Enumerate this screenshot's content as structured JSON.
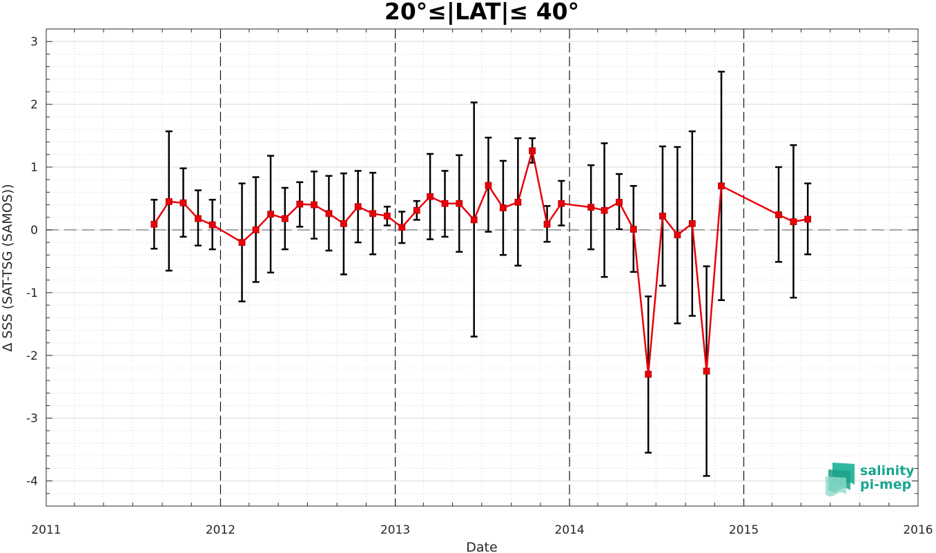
{
  "chart_data": {
    "type": "line",
    "title": "20°≤|LAT|≤ 40°",
    "xlabel": "Date",
    "ylabel": "Δ SSS (SAT-TSG (SAMOS))",
    "xlim": [
      "2011-01-01",
      "2016-01-01"
    ],
    "ylim": [
      -4.4,
      3.2
    ],
    "x_ticks": [
      "2011",
      "2012",
      "2013",
      "2014",
      "2015",
      "2016"
    ],
    "y_ticks": [
      "3",
      "2",
      "1",
      "0",
      "-1",
      "-2",
      "-3",
      "-4"
    ],
    "grid": true,
    "year_boundaries": [
      "2012",
      "2013",
      "2014",
      "2015"
    ],
    "zero_line": true,
    "series": [
      {
        "color": "#e8000b",
        "marker": "square",
        "errorbar_color": "#000000",
        "points": [
          {
            "date": "2011-08-15",
            "value": 0.09,
            "low": -0.3,
            "high": 0.48
          },
          {
            "date": "2011-09-15",
            "value": 0.45,
            "low": -0.65,
            "high": 1.57
          },
          {
            "date": "2011-10-15",
            "value": 0.43,
            "low": -0.11,
            "high": 0.98
          },
          {
            "date": "2011-11-15",
            "value": 0.18,
            "low": -0.25,
            "high": 0.63
          },
          {
            "date": "2011-12-15",
            "value": 0.08,
            "low": -0.31,
            "high": 0.48
          },
          {
            "date": "2012-02-15",
            "value": -0.2,
            "low": -1.14,
            "high": 0.74
          },
          {
            "date": "2012-03-15",
            "value": 0.0,
            "low": -0.83,
            "high": 0.84
          },
          {
            "date": "2012-04-15",
            "value": 0.25,
            "low": -0.68,
            "high": 1.18
          },
          {
            "date": "2012-05-15",
            "value": 0.18,
            "low": -0.31,
            "high": 0.67
          },
          {
            "date": "2012-06-15",
            "value": 0.41,
            "low": 0.05,
            "high": 0.76
          },
          {
            "date": "2012-07-15",
            "value": 0.4,
            "low": -0.14,
            "high": 0.93
          },
          {
            "date": "2012-08-15",
            "value": 0.26,
            "low": -0.33,
            "high": 0.86
          },
          {
            "date": "2012-09-15",
            "value": 0.1,
            "low": -0.71,
            "high": 0.9
          },
          {
            "date": "2012-10-15",
            "value": 0.37,
            "low": -0.2,
            "high": 0.94
          },
          {
            "date": "2012-11-15",
            "value": 0.26,
            "low": -0.39,
            "high": 0.91
          },
          {
            "date": "2012-12-15",
            "value": 0.22,
            "low": 0.07,
            "high": 0.37
          },
          {
            "date": "2013-01-15",
            "value": 0.04,
            "low": -0.21,
            "high": 0.29
          },
          {
            "date": "2013-02-15",
            "value": 0.31,
            "low": 0.16,
            "high": 0.46
          },
          {
            "date": "2013-03-15",
            "value": 0.53,
            "low": -0.15,
            "high": 1.21
          },
          {
            "date": "2013-04-15",
            "value": 0.42,
            "low": -0.11,
            "high": 0.94
          },
          {
            "date": "2013-05-15",
            "value": 0.42,
            "low": -0.35,
            "high": 1.19
          },
          {
            "date": "2013-06-15",
            "value": 0.16,
            "low": -1.7,
            "high": 2.03
          },
          {
            "date": "2013-07-15",
            "value": 0.71,
            "low": -0.03,
            "high": 1.47
          },
          {
            "date": "2013-08-15",
            "value": 0.35,
            "low": -0.4,
            "high": 1.1
          },
          {
            "date": "2013-09-15",
            "value": 0.44,
            "low": -0.57,
            "high": 1.46
          },
          {
            "date": "2013-10-15",
            "value": 1.26,
            "low": 1.07,
            "high": 1.46
          },
          {
            "date": "2013-11-15",
            "value": 0.09,
            "low": -0.19,
            "high": 0.38
          },
          {
            "date": "2013-12-15",
            "value": 0.42,
            "low": 0.07,
            "high": 0.78
          },
          {
            "date": "2014-02-15",
            "value": 0.36,
            "low": -0.31,
            "high": 1.03
          },
          {
            "date": "2014-03-15",
            "value": 0.31,
            "low": -0.75,
            "high": 1.38
          },
          {
            "date": "2014-04-15",
            "value": 0.44,
            "low": 0.01,
            "high": 0.89
          },
          {
            "date": "2014-05-15",
            "value": 0.01,
            "low": -0.67,
            "high": 0.7
          },
          {
            "date": "2014-06-15",
            "value": -2.3,
            "low": -3.55,
            "high": -1.06
          },
          {
            "date": "2014-07-15",
            "value": 0.22,
            "low": -0.89,
            "high": 1.33
          },
          {
            "date": "2014-08-15",
            "value": -0.08,
            "low": -1.49,
            "high": 1.32
          },
          {
            "date": "2014-09-15",
            "value": 0.1,
            "low": -1.37,
            "high": 1.57
          },
          {
            "date": "2014-10-15",
            "value": -2.25,
            "low": -3.92,
            "high": -0.58
          },
          {
            "date": "2014-11-15",
            "value": 0.7,
            "low": -1.12,
            "high": 2.52
          },
          {
            "date": "2015-03-15",
            "value": 0.24,
            "low": -0.51,
            "high": 1.0
          },
          {
            "date": "2015-04-15",
            "value": 0.13,
            "low": -1.08,
            "high": 1.35
          },
          {
            "date": "2015-05-15",
            "value": 0.17,
            "low": -0.39,
            "high": 0.74
          }
        ]
      }
    ]
  },
  "logo": {
    "line1": "salinity",
    "line2": "pi-mep",
    "color": "#19a58f"
  }
}
